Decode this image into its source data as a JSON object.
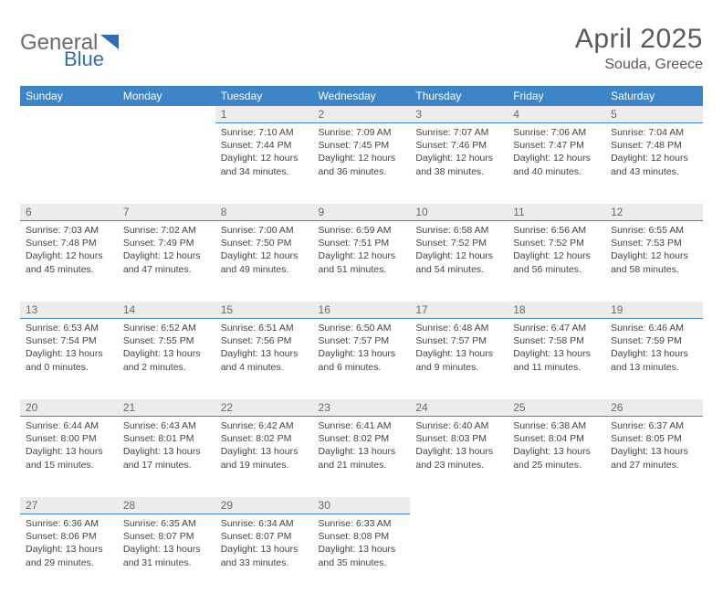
{
  "brand": {
    "name_part1": "General",
    "name_part2": "Blue"
  },
  "header": {
    "title": "April 2025",
    "location": "Souda, Greece"
  },
  "colors": {
    "header_bar": "#3d85c6",
    "daynum_bg": "#ececec",
    "daynum_border": "#3d85c6",
    "text": "#444444",
    "title_text": "#5a5a5a",
    "logo_gray": "#6b6b6b",
    "logo_blue": "#2f6fb0"
  },
  "weekdays": [
    "Sunday",
    "Monday",
    "Tuesday",
    "Wednesday",
    "Thursday",
    "Friday",
    "Saturday"
  ],
  "calendar": {
    "first_weekday_index": 2,
    "days": [
      {
        "n": "1",
        "sunrise": "7:10 AM",
        "sunset": "7:44 PM",
        "daylight_l1": "Daylight: 12 hours",
        "daylight_l2": "and 34 minutes."
      },
      {
        "n": "2",
        "sunrise": "7:09 AM",
        "sunset": "7:45 PM",
        "daylight_l1": "Daylight: 12 hours",
        "daylight_l2": "and 36 minutes."
      },
      {
        "n": "3",
        "sunrise": "7:07 AM",
        "sunset": "7:46 PM",
        "daylight_l1": "Daylight: 12 hours",
        "daylight_l2": "and 38 minutes."
      },
      {
        "n": "4",
        "sunrise": "7:06 AM",
        "sunset": "7:47 PM",
        "daylight_l1": "Daylight: 12 hours",
        "daylight_l2": "and 40 minutes."
      },
      {
        "n": "5",
        "sunrise": "7:04 AM",
        "sunset": "7:48 PM",
        "daylight_l1": "Daylight: 12 hours",
        "daylight_l2": "and 43 minutes."
      },
      {
        "n": "6",
        "sunrise": "7:03 AM",
        "sunset": "7:48 PM",
        "daylight_l1": "Daylight: 12 hours",
        "daylight_l2": "and 45 minutes."
      },
      {
        "n": "7",
        "sunrise": "7:02 AM",
        "sunset": "7:49 PM",
        "daylight_l1": "Daylight: 12 hours",
        "daylight_l2": "and 47 minutes."
      },
      {
        "n": "8",
        "sunrise": "7:00 AM",
        "sunset": "7:50 PM",
        "daylight_l1": "Daylight: 12 hours",
        "daylight_l2": "and 49 minutes."
      },
      {
        "n": "9",
        "sunrise": "6:59 AM",
        "sunset": "7:51 PM",
        "daylight_l1": "Daylight: 12 hours",
        "daylight_l2": "and 51 minutes."
      },
      {
        "n": "10",
        "sunrise": "6:58 AM",
        "sunset": "7:52 PM",
        "daylight_l1": "Daylight: 12 hours",
        "daylight_l2": "and 54 minutes."
      },
      {
        "n": "11",
        "sunrise": "6:56 AM",
        "sunset": "7:52 PM",
        "daylight_l1": "Daylight: 12 hours",
        "daylight_l2": "and 56 minutes."
      },
      {
        "n": "12",
        "sunrise": "6:55 AM",
        "sunset": "7:53 PM",
        "daylight_l1": "Daylight: 12 hours",
        "daylight_l2": "and 58 minutes."
      },
      {
        "n": "13",
        "sunrise": "6:53 AM",
        "sunset": "7:54 PM",
        "daylight_l1": "Daylight: 13 hours",
        "daylight_l2": "and 0 minutes."
      },
      {
        "n": "14",
        "sunrise": "6:52 AM",
        "sunset": "7:55 PM",
        "daylight_l1": "Daylight: 13 hours",
        "daylight_l2": "and 2 minutes."
      },
      {
        "n": "15",
        "sunrise": "6:51 AM",
        "sunset": "7:56 PM",
        "daylight_l1": "Daylight: 13 hours",
        "daylight_l2": "and 4 minutes."
      },
      {
        "n": "16",
        "sunrise": "6:50 AM",
        "sunset": "7:57 PM",
        "daylight_l1": "Daylight: 13 hours",
        "daylight_l2": "and 6 minutes."
      },
      {
        "n": "17",
        "sunrise": "6:48 AM",
        "sunset": "7:57 PM",
        "daylight_l1": "Daylight: 13 hours",
        "daylight_l2": "and 9 minutes."
      },
      {
        "n": "18",
        "sunrise": "6:47 AM",
        "sunset": "7:58 PM",
        "daylight_l1": "Daylight: 13 hours",
        "daylight_l2": "and 11 minutes."
      },
      {
        "n": "19",
        "sunrise": "6:46 AM",
        "sunset": "7:59 PM",
        "daylight_l1": "Daylight: 13 hours",
        "daylight_l2": "and 13 minutes."
      },
      {
        "n": "20",
        "sunrise": "6:44 AM",
        "sunset": "8:00 PM",
        "daylight_l1": "Daylight: 13 hours",
        "daylight_l2": "and 15 minutes."
      },
      {
        "n": "21",
        "sunrise": "6:43 AM",
        "sunset": "8:01 PM",
        "daylight_l1": "Daylight: 13 hours",
        "daylight_l2": "and 17 minutes."
      },
      {
        "n": "22",
        "sunrise": "6:42 AM",
        "sunset": "8:02 PM",
        "daylight_l1": "Daylight: 13 hours",
        "daylight_l2": "and 19 minutes."
      },
      {
        "n": "23",
        "sunrise": "6:41 AM",
        "sunset": "8:02 PM",
        "daylight_l1": "Daylight: 13 hours",
        "daylight_l2": "and 21 minutes."
      },
      {
        "n": "24",
        "sunrise": "6:40 AM",
        "sunset": "8:03 PM",
        "daylight_l1": "Daylight: 13 hours",
        "daylight_l2": "and 23 minutes."
      },
      {
        "n": "25",
        "sunrise": "6:38 AM",
        "sunset": "8:04 PM",
        "daylight_l1": "Daylight: 13 hours",
        "daylight_l2": "and 25 minutes."
      },
      {
        "n": "26",
        "sunrise": "6:37 AM",
        "sunset": "8:05 PM",
        "daylight_l1": "Daylight: 13 hours",
        "daylight_l2": "and 27 minutes."
      },
      {
        "n": "27",
        "sunrise": "6:36 AM",
        "sunset": "8:06 PM",
        "daylight_l1": "Daylight: 13 hours",
        "daylight_l2": "and 29 minutes."
      },
      {
        "n": "28",
        "sunrise": "6:35 AM",
        "sunset": "8:07 PM",
        "daylight_l1": "Daylight: 13 hours",
        "daylight_l2": "and 31 minutes."
      },
      {
        "n": "29",
        "sunrise": "6:34 AM",
        "sunset": "8:07 PM",
        "daylight_l1": "Daylight: 13 hours",
        "daylight_l2": "and 33 minutes."
      },
      {
        "n": "30",
        "sunrise": "6:33 AM",
        "sunset": "8:08 PM",
        "daylight_l1": "Daylight: 13 hours",
        "daylight_l2": "and 35 minutes."
      }
    ]
  },
  "labels": {
    "sunrise_prefix": "Sunrise: ",
    "sunset_prefix": "Sunset: "
  }
}
